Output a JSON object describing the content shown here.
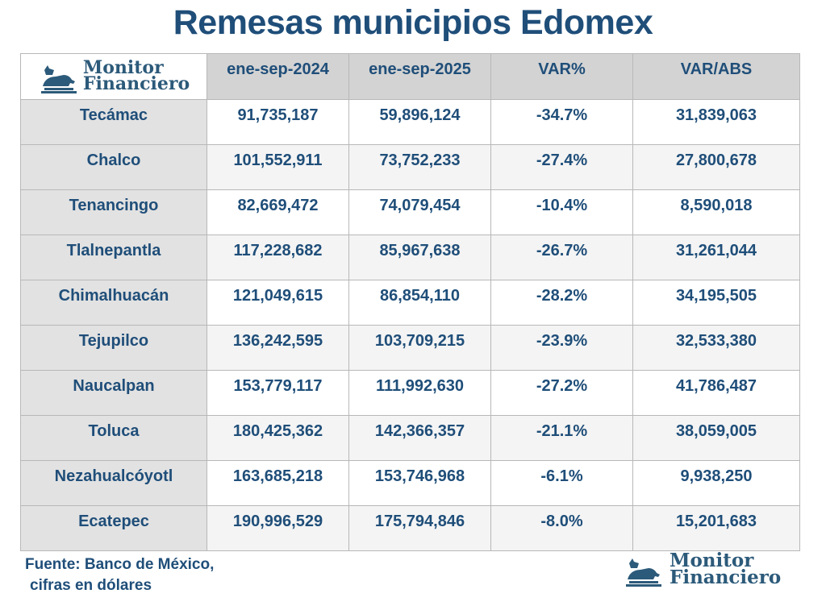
{
  "title": "Remesas municipios Edomex",
  "logo": "Monitor Financiero",
  "logo_lines": [
    "Monitor",
    "Financiero"
  ],
  "footer": {
    "line1": "Fuente: Banco de México,",
    "line2": "cifras en dólares"
  },
  "chart_data": {
    "type": "table",
    "title": "Remesas municipios Edomex",
    "columns": [
      "ene-sep-2024",
      "ene-sep-2025",
      "VAR%",
      "VAR/ABS"
    ],
    "rows": [
      {
        "name": "Tecámac",
        "v2024": "91,735,187",
        "v2025": "59,896,124",
        "var_pct": "-34.7%",
        "var_abs": "31,839,063"
      },
      {
        "name": "Chalco",
        "v2024": "101,552,911",
        "v2025": "73,752,233",
        "var_pct": "-27.4%",
        "var_abs": "27,800,678"
      },
      {
        "name": "Tenancingo",
        "v2024": "82,669,472",
        "v2025": "74,079,454",
        "var_pct": "-10.4%",
        "var_abs": "8,590,018"
      },
      {
        "name": "Tlalnepantla",
        "v2024": "117,228,682",
        "v2025": "85,967,638",
        "var_pct": "-26.7%",
        "var_abs": "31,261,044"
      },
      {
        "name": "Chimalhuacán",
        "v2024": "121,049,615",
        "v2025": "86,854,110",
        "var_pct": "-28.2%",
        "var_abs": "34,195,505"
      },
      {
        "name": "Tejupilco",
        "v2024": "136,242,595",
        "v2025": "103,709,215",
        "var_pct": "-23.9%",
        "var_abs": "32,533,380"
      },
      {
        "name": "Naucalpan",
        "v2024": "153,779,117",
        "v2025": "111,992,630",
        "var_pct": "-27.2%",
        "var_abs": "41,786,487"
      },
      {
        "name": "Toluca",
        "v2024": "180,425,362",
        "v2025": "142,366,357",
        "var_pct": "-21.1%",
        "var_abs": "38,059,005"
      },
      {
        "name": "Nezahualcóyotl",
        "v2024": "163,685,218",
        "v2025": "153,746,968",
        "var_pct": "-6.1%",
        "var_abs": "9,938,250"
      },
      {
        "name": "Ecatepec",
        "v2024": "190,996,529",
        "v2025": "175,794,846",
        "var_pct": "-8.0%",
        "var_abs": "15,201,683"
      }
    ]
  }
}
